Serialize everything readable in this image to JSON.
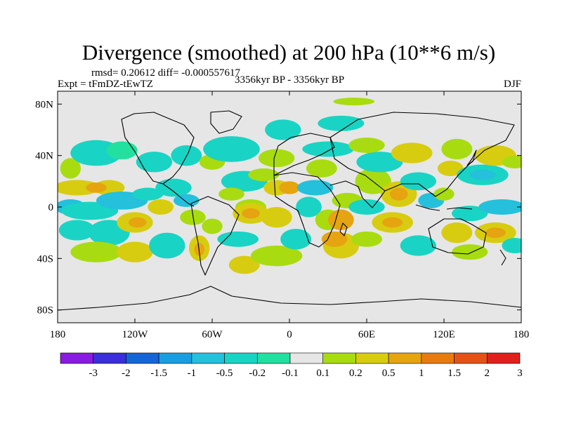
{
  "chart_data": {
    "type": "heatmap",
    "title": "Divergence (smoothed) at 200 hPa (10**6 m/s)",
    "stats": "rmsd= 0.20612 diff= -0.000557617",
    "experiment": "Expt = tFmDZ-tEwTZ",
    "period": "3356kyr BP - 3356kyr BP",
    "season": "DJF",
    "x_range": [
      -180,
      180
    ],
    "y_range": [
      -90,
      90
    ],
    "x_ticks": [
      {
        "value": -180,
        "label": "180"
      },
      {
        "value": -120,
        "label": "120W"
      },
      {
        "value": -60,
        "label": "60W"
      },
      {
        "value": 0,
        "label": "0"
      },
      {
        "value": 60,
        "label": "60E"
      },
      {
        "value": 120,
        "label": "120E"
      },
      {
        "value": 180,
        "label": "180"
      }
    ],
    "y_ticks": [
      {
        "value": 80,
        "label": "80N"
      },
      {
        "value": 40,
        "label": "40N"
      },
      {
        "value": 0,
        "label": "0"
      },
      {
        "value": -40,
        "label": "40S"
      },
      {
        "value": -80,
        "label": "80S"
      }
    ],
    "colorbar": {
      "levels": [
        "-3",
        "-2",
        "-1.5",
        "-1",
        "-0.5",
        "-0.2",
        "-0.1",
        "0.1",
        "0.2",
        "0.5",
        "1",
        "1.5",
        "2",
        "3"
      ],
      "colors": [
        "#8a1be0",
        "#3a2fd8",
        "#1565d6",
        "#1b9ee0",
        "#24c0dc",
        "#19d4c4",
        "#22e0a0",
        "#e6e6e6",
        "#a8dc10",
        "#d8cc10",
        "#e6a410",
        "#e67c10",
        "#e45218",
        "#e0201c"
      ]
    },
    "features": [
      {
        "lon": -170,
        "lat": 30,
        "rx": 8,
        "ry": 8,
        "cls": 8
      },
      {
        "lon": -150,
        "lat": 42,
        "rx": 20,
        "ry": 10,
        "cls": 5
      },
      {
        "lon": -130,
        "lat": 44,
        "rx": 12,
        "ry": 7,
        "cls": 6
      },
      {
        "lon": -165,
        "lat": 15,
        "rx": 18,
        "ry": 6,
        "cls": 9
      },
      {
        "lon": -140,
        "lat": 15,
        "rx": 12,
        "ry": 6,
        "cls": 9
      },
      {
        "lon": -150,
        "lat": 15,
        "rx": 8,
        "ry": 4,
        "cls": 10
      },
      {
        "lon": -170,
        "lat": 0,
        "rx": 12,
        "ry": 6,
        "cls": 4
      },
      {
        "lon": -155,
        "lat": -3,
        "rx": 22,
        "ry": 7,
        "cls": 5
      },
      {
        "lon": -130,
        "lat": 5,
        "rx": 20,
        "ry": 7,
        "cls": 4
      },
      {
        "lon": -110,
        "lat": 10,
        "rx": 12,
        "ry": 5,
        "cls": 5
      },
      {
        "lon": -165,
        "lat": -18,
        "rx": 14,
        "ry": 8,
        "cls": 5
      },
      {
        "lon": -140,
        "lat": -20,
        "rx": 16,
        "ry": 10,
        "cls": 5
      },
      {
        "lon": -120,
        "lat": -12,
        "rx": 14,
        "ry": 8,
        "cls": 9
      },
      {
        "lon": -118,
        "lat": -12,
        "rx": 7,
        "ry": 4,
        "cls": 10
      },
      {
        "lon": -150,
        "lat": -35,
        "rx": 20,
        "ry": 8,
        "cls": 8
      },
      {
        "lon": -120,
        "lat": -35,
        "rx": 14,
        "ry": 8,
        "cls": 9
      },
      {
        "lon": -95,
        "lat": -30,
        "rx": 14,
        "ry": 10,
        "cls": 5
      },
      {
        "lon": -105,
        "lat": 35,
        "rx": 14,
        "ry": 8,
        "cls": 5
      },
      {
        "lon": -80,
        "lat": 40,
        "rx": 12,
        "ry": 8,
        "cls": 5
      },
      {
        "lon": -60,
        "lat": 35,
        "rx": 10,
        "ry": 6,
        "cls": 8
      },
      {
        "lon": -90,
        "lat": 15,
        "rx": 14,
        "ry": 7,
        "cls": 5
      },
      {
        "lon": -80,
        "lat": 5,
        "rx": 10,
        "ry": 5,
        "cls": 4
      },
      {
        "lon": -100,
        "lat": 0,
        "rx": 10,
        "ry": 6,
        "cls": 9
      },
      {
        "lon": -75,
        "lat": -8,
        "rx": 10,
        "ry": 6,
        "cls": 8
      },
      {
        "lon": -60,
        "lat": -15,
        "rx": 8,
        "ry": 6,
        "cls": 8
      },
      {
        "lon": -70,
        "lat": -32,
        "rx": 8,
        "ry": 10,
        "cls": 9
      },
      {
        "lon": -70,
        "lat": -33,
        "rx": 4,
        "ry": 5,
        "cls": 10
      },
      {
        "lon": -45,
        "lat": 45,
        "rx": 22,
        "ry": 10,
        "cls": 5
      },
      {
        "lon": -35,
        "lat": 20,
        "rx": 18,
        "ry": 8,
        "cls": 5
      },
      {
        "lon": -45,
        "lat": 10,
        "rx": 10,
        "ry": 5,
        "cls": 8
      },
      {
        "lon": -30,
        "lat": 0,
        "rx": 12,
        "ry": 6,
        "cls": 8
      },
      {
        "lon": -30,
        "lat": -5,
        "rx": 14,
        "ry": 8,
        "cls": 9
      },
      {
        "lon": -30,
        "lat": -5,
        "rx": 7,
        "ry": 4,
        "cls": 10
      },
      {
        "lon": -40,
        "lat": -25,
        "rx": 16,
        "ry": 6,
        "cls": 5
      },
      {
        "lon": -35,
        "lat": -45,
        "rx": 12,
        "ry": 7,
        "cls": 9
      },
      {
        "lon": -10,
        "lat": -38,
        "rx": 20,
        "ry": 8,
        "cls": 8
      },
      {
        "lon": -10,
        "lat": -8,
        "rx": 12,
        "ry": 8,
        "cls": 9
      },
      {
        "lon": -10,
        "lat": 15,
        "rx": 10,
        "ry": 6,
        "cls": 9
      },
      {
        "lon": 0,
        "lat": 15,
        "rx": 8,
        "ry": 5,
        "cls": 10
      },
      {
        "lon": -20,
        "lat": 25,
        "rx": 12,
        "ry": 5,
        "cls": 8
      },
      {
        "lon": -10,
        "lat": 38,
        "rx": 14,
        "ry": 7,
        "cls": 8
      },
      {
        "lon": -5,
        "lat": 60,
        "rx": 14,
        "ry": 8,
        "cls": 5
      },
      {
        "lon": 5,
        "lat": -25,
        "rx": 12,
        "ry": 8,
        "cls": 5
      },
      {
        "lon": 15,
        "lat": 0,
        "rx": 10,
        "ry": 8,
        "cls": 5
      },
      {
        "lon": 20,
        "lat": 15,
        "rx": 14,
        "ry": 6,
        "cls": 4
      },
      {
        "lon": 25,
        "lat": 30,
        "rx": 12,
        "ry": 7,
        "cls": 8
      },
      {
        "lon": 30,
        "lat": 45,
        "rx": 20,
        "ry": 6,
        "cls": 5
      },
      {
        "lon": 40,
        "lat": 65,
        "rx": 18,
        "ry": 6,
        "cls": 5
      },
      {
        "lon": 50,
        "lat": 82,
        "rx": 16,
        "ry": 3,
        "cls": 8
      },
      {
        "lon": 30,
        "lat": -10,
        "rx": 10,
        "ry": 8,
        "cls": 8
      },
      {
        "lon": 40,
        "lat": -10,
        "rx": 10,
        "ry": 8,
        "cls": 10
      },
      {
        "lon": 40,
        "lat": -30,
        "rx": 14,
        "ry": 10,
        "cls": 9
      },
      {
        "lon": 35,
        "lat": -25,
        "rx": 10,
        "ry": 6,
        "cls": 10
      },
      {
        "lon": 45,
        "lat": 5,
        "rx": 12,
        "ry": 6,
        "cls": 8
      },
      {
        "lon": 60,
        "lat": 0,
        "rx": 14,
        "ry": 6,
        "cls": 5
      },
      {
        "lon": 65,
        "lat": 20,
        "rx": 14,
        "ry": 10,
        "cls": 8
      },
      {
        "lon": 70,
        "lat": 35,
        "rx": 18,
        "ry": 8,
        "cls": 5
      },
      {
        "lon": 60,
        "lat": 48,
        "rx": 14,
        "ry": 6,
        "cls": 8
      },
      {
        "lon": 85,
        "lat": 10,
        "rx": 14,
        "ry": 10,
        "cls": 9
      },
      {
        "lon": 85,
        "lat": 10,
        "rx": 7,
        "ry": 5,
        "cls": 10
      },
      {
        "lon": 80,
        "lat": -12,
        "rx": 16,
        "ry": 8,
        "cls": 9
      },
      {
        "lon": 80,
        "lat": -12,
        "rx": 8,
        "ry": 4,
        "cls": 10
      },
      {
        "lon": 60,
        "lat": -25,
        "rx": 12,
        "ry": 6,
        "cls": 8
      },
      {
        "lon": 100,
        "lat": -30,
        "rx": 14,
        "ry": 8,
        "cls": 5
      },
      {
        "lon": 95,
        "lat": 42,
        "rx": 16,
        "ry": 8,
        "cls": 9
      },
      {
        "lon": 100,
        "lat": 20,
        "rx": 14,
        "ry": 7,
        "cls": 5
      },
      {
        "lon": 110,
        "lat": 5,
        "rx": 10,
        "ry": 6,
        "cls": 4
      },
      {
        "lon": 120,
        "lat": 10,
        "rx": 8,
        "ry": 5,
        "cls": 8
      },
      {
        "lon": 125,
        "lat": 30,
        "rx": 10,
        "ry": 6,
        "cls": 9
      },
      {
        "lon": 130,
        "lat": 45,
        "rx": 12,
        "ry": 8,
        "cls": 8
      },
      {
        "lon": 150,
        "lat": 25,
        "rx": 20,
        "ry": 8,
        "cls": 5
      },
      {
        "lon": 150,
        "lat": 25,
        "rx": 10,
        "ry": 4,
        "cls": 4
      },
      {
        "lon": 160,
        "lat": 40,
        "rx": 16,
        "ry": 8,
        "cls": 9
      },
      {
        "lon": 175,
        "lat": 35,
        "rx": 10,
        "ry": 5,
        "cls": 8
      },
      {
        "lon": 140,
        "lat": -5,
        "rx": 14,
        "ry": 6,
        "cls": 5
      },
      {
        "lon": 165,
        "lat": 0,
        "rx": 18,
        "ry": 6,
        "cls": 4
      },
      {
        "lon": 130,
        "lat": -20,
        "rx": 12,
        "ry": 8,
        "cls": 9
      },
      {
        "lon": 160,
        "lat": -20,
        "rx": 16,
        "ry": 8,
        "cls": 9
      },
      {
        "lon": 160,
        "lat": -20,
        "rx": 8,
        "ry": 4,
        "cls": 10
      },
      {
        "lon": 140,
        "lat": -35,
        "rx": 14,
        "ry": 6,
        "cls": 8
      },
      {
        "lon": 175,
        "lat": -30,
        "rx": 10,
        "ry": 6,
        "cls": 5
      }
    ]
  }
}
